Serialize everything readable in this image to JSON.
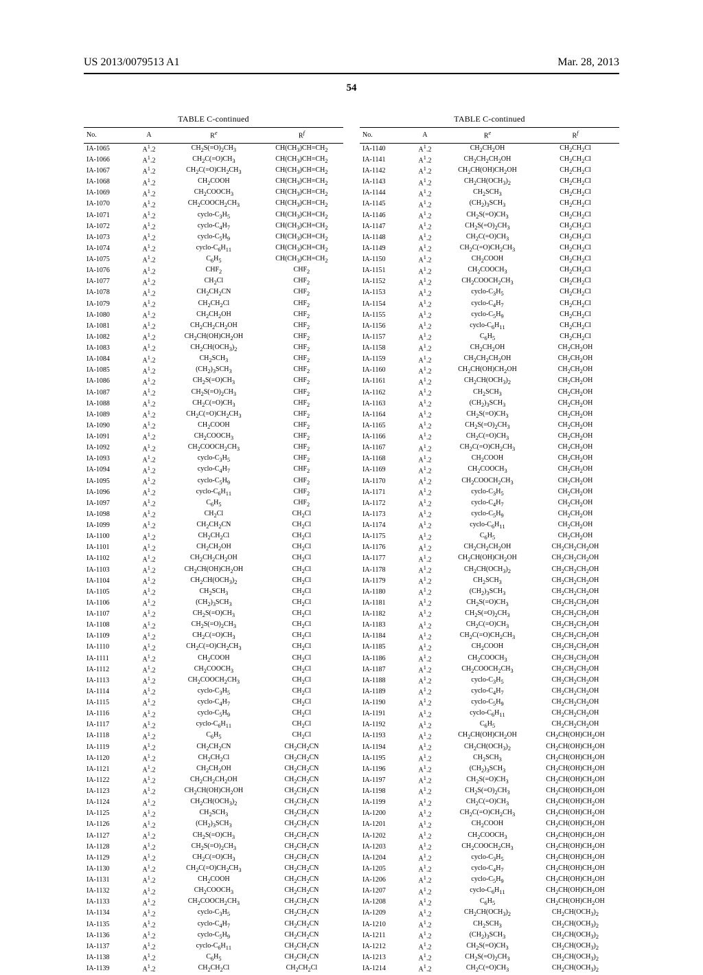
{
  "header": {
    "pub": "US 2013/0079513 A1",
    "date": "Mar. 28, 2013",
    "page": "54"
  },
  "caption": "TABLE C-continued",
  "columns": [
    "No.",
    "A",
    "Re",
    "Rf"
  ],
  "A_default": "A1.2",
  "left_rows": [
    {
      "no": "IA-1065",
      "re": "CH2S(=O)2CH3",
      "rf": "CH(CH3)CH=CH2"
    },
    {
      "no": "IA-1066",
      "re": "CH2C(=O)CH3",
      "rf": "CH(CH3)CH=CH2"
    },
    {
      "no": "IA-1067",
      "re": "CH2C(=O)CH2CH3",
      "rf": "CH(CH3)CH=CH2"
    },
    {
      "no": "IA-1068",
      "re": "CH2COOH",
      "rf": "CH(CH3)CH=CH2"
    },
    {
      "no": "IA-1069",
      "re": "CH2COOCH3",
      "rf": "CH(CH3)CH=CH2"
    },
    {
      "no": "IA-1070",
      "re": "CH2COOCH2CH3",
      "rf": "CH(CH3)CH=CH2"
    },
    {
      "no": "IA-1071",
      "re": "cyclo-C3H5",
      "rf": "CH(CH3)CH=CH2"
    },
    {
      "no": "IA-1072",
      "re": "cyclo-C4H7",
      "rf": "CH(CH3)CH=CH2"
    },
    {
      "no": "IA-1073",
      "re": "cyclo-C5H9",
      "rf": "CH(CH3)CH=CH2"
    },
    {
      "no": "IA-1074",
      "re": "cyclo-C6H11",
      "rf": "CH(CH3)CH=CH2"
    },
    {
      "no": "IA-1075",
      "re": "C6H5",
      "rf": "CH(CH3)CH=CH2"
    },
    {
      "no": "IA-1076",
      "re": "CHF2",
      "rf": "CHF2"
    },
    {
      "no": "IA-1077",
      "re": "CH2Cl",
      "rf": "CHF2"
    },
    {
      "no": "IA-1078",
      "re": "CH2CH2CN",
      "rf": "CHF2"
    },
    {
      "no": "IA-1079",
      "re": "CH2CH2Cl",
      "rf": "CHF2"
    },
    {
      "no": "IA-1080",
      "re": "CH2CH2OH",
      "rf": "CHF2"
    },
    {
      "no": "IA-1081",
      "re": "CH2CH2CH2OH",
      "rf": "CHF2"
    },
    {
      "no": "IA-1082",
      "re": "CH2CH(OH)CH2OH",
      "rf": "CHF2"
    },
    {
      "no": "IA-1083",
      "re": "CH2CH(OCH3)2",
      "rf": "CHF2"
    },
    {
      "no": "IA-1084",
      "re": "CH2SCH3",
      "rf": "CHF2"
    },
    {
      "no": "IA-1085",
      "re": "(CH2)3SCH3",
      "rf": "CHF2"
    },
    {
      "no": "IA-1086",
      "re": "CH2S(=O)CH3",
      "rf": "CHF2"
    },
    {
      "no": "IA-1087",
      "re": "CH2S(=O)2CH3",
      "rf": "CHF2"
    },
    {
      "no": "IA-1088",
      "re": "CH2C(=O)CH3",
      "rf": "CHF2"
    },
    {
      "no": "IA-1089",
      "re": "CH2C(=O)CH2CH3",
      "rf": "CHF2"
    },
    {
      "no": "IA-1090",
      "re": "CH2COOH",
      "rf": "CHF2"
    },
    {
      "no": "IA-1091",
      "re": "CH2COOCH3",
      "rf": "CHF2"
    },
    {
      "no": "IA-1092",
      "re": "CH2COOCH2CH3",
      "rf": "CHF2"
    },
    {
      "no": "IA-1093",
      "re": "cyclo-C3H5",
      "rf": "CHF2"
    },
    {
      "no": "IA-1094",
      "re": "cyclo-C4H7",
      "rf": "CHF2"
    },
    {
      "no": "IA-1095",
      "re": "cyclo-C5H9",
      "rf": "CHF2"
    },
    {
      "no": "IA-1096",
      "re": "cyclo-C6H11",
      "rf": "CHF2"
    },
    {
      "no": "IA-1097",
      "re": "C6H5",
      "rf": "CHF2"
    },
    {
      "no": "IA-1098",
      "re": "CH2Cl",
      "rf": "CH2Cl"
    },
    {
      "no": "IA-1099",
      "re": "CH2CH2CN",
      "rf": "CH2Cl"
    },
    {
      "no": "IA-1100",
      "re": "CH2CH2Cl",
      "rf": "CH2Cl"
    },
    {
      "no": "IA-1101",
      "re": "CH2CH2OH",
      "rf": "CH2Cl"
    },
    {
      "no": "IA-1102",
      "re": "CH2CH2CH2OH",
      "rf": "CH2Cl"
    },
    {
      "no": "IA-1103",
      "re": "CH2CH(OH)CH2OH",
      "rf": "CH2Cl"
    },
    {
      "no": "IA-1104",
      "re": "CH2CH(OCH3)2",
      "rf": "CH2Cl"
    },
    {
      "no": "IA-1105",
      "re": "CH2SCH3",
      "rf": "CH2Cl"
    },
    {
      "no": "IA-1106",
      "re": "(CH2)3SCH3",
      "rf": "CH2Cl"
    },
    {
      "no": "IA-1107",
      "re": "CH2S(=O)CH3",
      "rf": "CH2Cl"
    },
    {
      "no": "IA-1108",
      "re": "CH2S(=O)2CH3",
      "rf": "CH2Cl"
    },
    {
      "no": "IA-1109",
      "re": "CH2C(=O)CH3",
      "rf": "CH2Cl"
    },
    {
      "no": "IA-1110",
      "re": "CH2C(=O)CH2CH3",
      "rf": "CH2Cl"
    },
    {
      "no": "IA-1111",
      "re": "CH2COOH",
      "rf": "CH2Cl"
    },
    {
      "no": "IA-1112",
      "re": "CH2COOCH3",
      "rf": "CH2Cl"
    },
    {
      "no": "IA-1113",
      "re": "CH2COOCH2CH3",
      "rf": "CH2Cl"
    },
    {
      "no": "IA-1114",
      "re": "cyclo-C3H5",
      "rf": "CH2Cl"
    },
    {
      "no": "IA-1115",
      "re": "cyclo-C4H7",
      "rf": "CH2Cl"
    },
    {
      "no": "IA-1116",
      "re": "cyclo-C5H9",
      "rf": "CH2Cl"
    },
    {
      "no": "IA-1117",
      "re": "cyclo-C6H11",
      "rf": "CH2Cl"
    },
    {
      "no": "IA-1118",
      "re": "C6H5",
      "rf": "CH2Cl"
    },
    {
      "no": "IA-1119",
      "re": "CH2CH2CN",
      "rf": "CH2CH2CN"
    },
    {
      "no": "IA-1120",
      "re": "CH2CH2Cl",
      "rf": "CH2CH2CN"
    },
    {
      "no": "IA-1121",
      "re": "CH2CH2OH",
      "rf": "CH2CH2CN"
    },
    {
      "no": "IA-1122",
      "re": "CH2CH2CH2OH",
      "rf": "CH2CH2CN"
    },
    {
      "no": "IA-1123",
      "re": "CH2CH(OH)CH2OH",
      "rf": "CH2CH2CN"
    },
    {
      "no": "IA-1124",
      "re": "CH2CH(OCH3)2",
      "rf": "CH2CH2CN"
    },
    {
      "no": "IA-1125",
      "re": "CH2SCH3",
      "rf": "CH2CH2CN"
    },
    {
      "no": "IA-1126",
      "re": "(CH2)3SCH3",
      "rf": "CH2CH2CN"
    },
    {
      "no": "IA-1127",
      "re": "CH2S(=O)CH3",
      "rf": "CH2CH2CN"
    },
    {
      "no": "IA-1128",
      "re": "CH2S(=O)2CH3",
      "rf": "CH2CH2CN"
    },
    {
      "no": "IA-1129",
      "re": "CH2C(=O)CH3",
      "rf": "CH2CH2CN"
    },
    {
      "no": "IA-1130",
      "re": "CH2C(=O)CH2CH3",
      "rf": "CH2CH2CN"
    },
    {
      "no": "IA-1131",
      "re": "CH2COOH",
      "rf": "CH2CH2CN"
    },
    {
      "no": "IA-1132",
      "re": "CH2COOCH3",
      "rf": "CH2CH2CN"
    },
    {
      "no": "IA-1133",
      "re": "CH2COOCH2CH3",
      "rf": "CH2CH2CN"
    },
    {
      "no": "IA-1134",
      "re": "cyclo-C3H5",
      "rf": "CH2CH2CN"
    },
    {
      "no": "IA-1135",
      "re": "cyclo-C4H7",
      "rf": "CH2CH2CN"
    },
    {
      "no": "IA-1136",
      "re": "cyclo-C5H9",
      "rf": "CH2CH2CN"
    },
    {
      "no": "IA-1137",
      "re": "cyclo-C6H11",
      "rf": "CH2CH2CN"
    },
    {
      "no": "IA-1138",
      "re": "C6H5",
      "rf": "CH2CH2CN"
    },
    {
      "no": "IA-1139",
      "re": "CH2CH2Cl",
      "rf": "CH2CH2Cl"
    }
  ],
  "right_rows": [
    {
      "no": "IA-1140",
      "re": "CH2CH2OH",
      "rf": "CH2CH2Cl"
    },
    {
      "no": "IA-1141",
      "re": "CH2CH2CH2OH",
      "rf": "CH2CH2Cl"
    },
    {
      "no": "IA-1142",
      "re": "CH2CH(OH)CH2OH",
      "rf": "CH2CH2Cl"
    },
    {
      "no": "IA-1143",
      "re": "CH2CH(OCH3)2",
      "rf": "CH2CH2Cl"
    },
    {
      "no": "IA-1144",
      "re": "CH2SCH3",
      "rf": "CH2CH2Cl"
    },
    {
      "no": "IA-1145",
      "re": "(CH2)3SCH3",
      "rf": "CH2CH2Cl"
    },
    {
      "no": "IA-1146",
      "re": "CH2S(=O)CH3",
      "rf": "CH2CH2Cl"
    },
    {
      "no": "IA-1147",
      "re": "CH2S(=O)2CH3",
      "rf": "CH2CH2Cl"
    },
    {
      "no": "IA-1148",
      "re": "CH2C(=O)CH3",
      "rf": "CH2CH2Cl"
    },
    {
      "no": "IA-1149",
      "re": "CH2C(=O)CH2CH3",
      "rf": "CH2CH2Cl"
    },
    {
      "no": "IA-1150",
      "re": "CH2COOH",
      "rf": "CH2CH2Cl"
    },
    {
      "no": "IA-1151",
      "re": "CH2COOCH3",
      "rf": "CH2CH2Cl"
    },
    {
      "no": "IA-1152",
      "re": "CH2COOCH2CH3",
      "rf": "CH2CH2Cl"
    },
    {
      "no": "IA-1153",
      "re": "cyclo-C3H5",
      "rf": "CH2CH2Cl"
    },
    {
      "no": "IA-1154",
      "re": "cyclo-C4H7",
      "rf": "CH2CH2Cl"
    },
    {
      "no": "IA-1155",
      "re": "cyclo-C5H9",
      "rf": "CH2CH2Cl"
    },
    {
      "no": "IA-1156",
      "re": "cyclo-C6H11",
      "rf": "CH2CH2Cl"
    },
    {
      "no": "IA-1157",
      "re": "C6H5",
      "rf": "CH2CH2Cl"
    },
    {
      "no": "IA-1158",
      "re": "CH2CH2OH",
      "rf": "CH2CH2OH"
    },
    {
      "no": "IA-1159",
      "re": "CH2CH2CH2OH",
      "rf": "CH2CH2OH"
    },
    {
      "no": "IA-1160",
      "re": "CH2CH(OH)CH2OH",
      "rf": "CH2CH2OH"
    },
    {
      "no": "IA-1161",
      "re": "CH2CH(OCH3)2",
      "rf": "CH2CH2OH"
    },
    {
      "no": "IA-1162",
      "re": "CH2SCH3",
      "rf": "CH2CH2OH"
    },
    {
      "no": "IA-1163",
      "re": "(CH2)3SCH3",
      "rf": "CH2CH2OH"
    },
    {
      "no": "IA-1164",
      "re": "CH2S(=O)CH3",
      "rf": "CH2CH2OH"
    },
    {
      "no": "IA-1165",
      "re": "CH2S(=O)2CH3",
      "rf": "CH2CH2OH"
    },
    {
      "no": "IA-1166",
      "re": "CH2C(=O)CH3",
      "rf": "CH2CH2OH"
    },
    {
      "no": "IA-1167",
      "re": "CH2C(=O)CH2CH3",
      "rf": "CH2CH2OH"
    },
    {
      "no": "IA-1168",
      "re": "CH2COOH",
      "rf": "CH2CH2OH"
    },
    {
      "no": "IA-1169",
      "re": "CH2COOCH3",
      "rf": "CH2CH2OH"
    },
    {
      "no": "IA-1170",
      "re": "CH2COOCH2CH3",
      "rf": "CH2CH2OH"
    },
    {
      "no": "IA-1171",
      "re": "cyclo-C3H5",
      "rf": "CH2CH2OH"
    },
    {
      "no": "IA-1172",
      "re": "cyclo-C4H7",
      "rf": "CH2CH2OH"
    },
    {
      "no": "IA-1173",
      "re": "cyclo-C5H9",
      "rf": "CH2CH2OH"
    },
    {
      "no": "IA-1174",
      "re": "cyclo-C6H11",
      "rf": "CH2CH2OH"
    },
    {
      "no": "IA-1175",
      "re": "C6H5",
      "rf": "CH2CH2OH"
    },
    {
      "no": "IA-1176",
      "re": "CH2CH2CH2OH",
      "rf": "CH2CH2CH2OH"
    },
    {
      "no": "IA-1177",
      "re": "CH2CH(OH)CH2OH",
      "rf": "CH2CH2CH2OH"
    },
    {
      "no": "IA-1178",
      "re": "CH2CH(OCH3)2",
      "rf": "CH2CH2CH2OH"
    },
    {
      "no": "IA-1179",
      "re": "CH2SCH3",
      "rf": "CH2CH2CH2OH"
    },
    {
      "no": "IA-1180",
      "re": "(CH2)3SCH3",
      "rf": "CH2CH2CH2OH"
    },
    {
      "no": "IA-1181",
      "re": "CH2S(=O)CH3",
      "rf": "CH2CH2CH2OH"
    },
    {
      "no": "IA-1182",
      "re": "CH2S(=O)2CH3",
      "rf": "CH2CH2CH2OH"
    },
    {
      "no": "IA-1183",
      "re": "CH2C(=O)CH3",
      "rf": "CH2CH2CH2OH"
    },
    {
      "no": "IA-1184",
      "re": "CH2C(=O)CH2CH3",
      "rf": "CH2CH2CH2OH"
    },
    {
      "no": "IA-1185",
      "re": "CH2COOH",
      "rf": "CH2CH2CH2OH"
    },
    {
      "no": "IA-1186",
      "re": "CH2COOCH3",
      "rf": "CH2CH2CH2OH"
    },
    {
      "no": "IA-1187",
      "re": "CH2COOCH2CH3",
      "rf": "CH2CH2CH2OH"
    },
    {
      "no": "IA-1188",
      "re": "cyclo-C3H5",
      "rf": "CH2CH2CH2OH"
    },
    {
      "no": "IA-1189",
      "re": "cyclo-C4H7",
      "rf": "CH2CH2CH2OH"
    },
    {
      "no": "IA-1190",
      "re": "cyclo-C5H9",
      "rf": "CH2CH2CH2OH"
    },
    {
      "no": "IA-1191",
      "re": "cyclo-C6H11",
      "rf": "CH2CH2CH2OH"
    },
    {
      "no": "IA-1192",
      "re": "C6H5",
      "rf": "CH2CH2CH2OH"
    },
    {
      "no": "IA-1193",
      "re": "CH2CH(OH)CH2OH",
      "rf": "CH2CH(OH)CH2OH"
    },
    {
      "no": "IA-1194",
      "re": "CH2CH(OCH3)2",
      "rf": "CH2CH(OH)CH2OH"
    },
    {
      "no": "IA-1195",
      "re": "CH2SCH3",
      "rf": "CH2CH(OH)CH2OH"
    },
    {
      "no": "IA-1196",
      "re": "(CH2)3SCH3",
      "rf": "CH2CH(OH)CH2OH"
    },
    {
      "no": "IA-1197",
      "re": "CH2S(=O)CH3",
      "rf": "CH2CH(OH)CH2OH"
    },
    {
      "no": "IA-1198",
      "re": "CH2S(=O)2CH3",
      "rf": "CH2CH(OH)CH2OH"
    },
    {
      "no": "IA-1199",
      "re": "CH2C(=O)CH3",
      "rf": "CH2CH(OH)CH2OH"
    },
    {
      "no": "IA-1200",
      "re": "CH2C(=O)CH2CH3",
      "rf": "CH2CH(OH)CH2OH"
    },
    {
      "no": "IA-1201",
      "re": "CH2COOH",
      "rf": "CH2CH(OH)CH2OH"
    },
    {
      "no": "IA-1202",
      "re": "CH2COOCH3",
      "rf": "CH2CH(OH)CH2OH"
    },
    {
      "no": "IA-1203",
      "re": "CH2COOCH2CH3",
      "rf": "CH2CH(OH)CH2OH"
    },
    {
      "no": "IA-1204",
      "re": "cyclo-C3H5",
      "rf": "CH2CH(OH)CH2OH"
    },
    {
      "no": "IA-1205",
      "re": "cyclo-C4H7",
      "rf": "CH2CH(OH)CH2OH"
    },
    {
      "no": "IA-1206",
      "re": "cyclo-C5H9",
      "rf": "CH2CH(OH)CH2OH"
    },
    {
      "no": "IA-1207",
      "re": "cyclo-C6H11",
      "rf": "CH2CH(OH)CH2OH"
    },
    {
      "no": "IA-1208",
      "re": "C6H5",
      "rf": "CH2CH(OH)CH2OH"
    },
    {
      "no": "IA-1209",
      "re": "CH2CH(OCH3)2",
      "rf": "CH2CH(OCH3)2"
    },
    {
      "no": "IA-1210",
      "re": "CH2SCH3",
      "rf": "CH2CH(OCH3)2"
    },
    {
      "no": "IA-1211",
      "re": "(CH2)3SCH3",
      "rf": "CH2CH(OCH3)2"
    },
    {
      "no": "IA-1212",
      "re": "CH2S(=O)CH3",
      "rf": "CH2CH(OCH3)2"
    },
    {
      "no": "IA-1213",
      "re": "CH2S(=O)2CH3",
      "rf": "CH2CH(OCH3)2"
    },
    {
      "no": "IA-1214",
      "re": "CH2C(=O)CH3",
      "rf": "CH2CH(OCH3)2"
    }
  ]
}
